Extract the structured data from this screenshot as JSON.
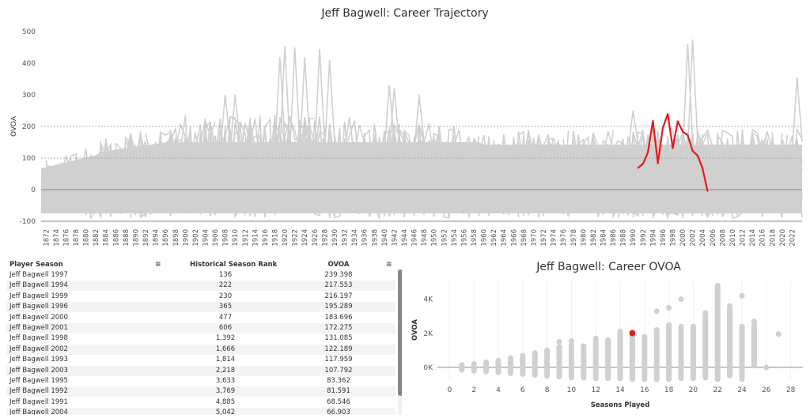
{
  "chart_data": [
    {
      "type": "line",
      "title": "Jeff Bagwell: Career Trajectory",
      "ylabel": "OVOA",
      "xlabel": "",
      "ylim": [
        -100,
        500
      ],
      "xlim": [
        1871,
        2024
      ],
      "y_ticks": [
        "500",
        "400",
        "300",
        "200",
        "100",
        "0",
        "-100"
      ],
      "x_tick_years": [
        1872,
        1874,
        1876,
        1878,
        1880,
        1882,
        1884,
        1886,
        1888,
        1890,
        1892,
        1894,
        1896,
        1898,
        1900,
        1902,
        1904,
        1906,
        1908,
        1910,
        1912,
        1914,
        1916,
        1918,
        1920,
        1922,
        1924,
        1926,
        1928,
        1930,
        1932,
        1934,
        1936,
        1938,
        1940,
        1942,
        1944,
        1946,
        1948,
        1950,
        1952,
        1954,
        1956,
        1958,
        1960,
        1962,
        1964,
        1966,
        1968,
        1970,
        1972,
        1974,
        1976,
        1978,
        1980,
        1982,
        1984,
        1986,
        1988,
        1990,
        1992,
        1994,
        1996,
        1998,
        2000,
        2002,
        2004,
        2006,
        2008,
        2010,
        2012,
        2014,
        2016,
        2018,
        2020,
        2022
      ],
      "reference_lines": [
        200,
        100,
        0,
        -100
      ],
      "background_series_color": "#d0d0d0",
      "highlight_color": "#e31a1c",
      "series": [
        {
          "name": "Jeff Bagwell",
          "x": [
            1991,
            1992,
            1993,
            1994,
            1995,
            1996,
            1997,
            1998,
            1999,
            2000,
            2001,
            2002,
            2003,
            2004,
            2005
          ],
          "y": [
            68.546,
            81.591,
            117.959,
            217.553,
            83.362,
            195.289,
            239.398,
            131.085,
            216.197,
            183.696,
            172.275,
            122.189,
            107.792,
            66.903,
            -5
          ]
        }
      ]
    },
    {
      "type": "scatter",
      "title": "Jeff Bagwell: Career OVOA",
      "xlabel": "Seasons Played",
      "ylabel": "OVOA",
      "xlim": [
        -1,
        29
      ],
      "ylim": [
        -700,
        5100
      ],
      "x_ticks": [
        "0",
        "2",
        "4",
        "6",
        "8",
        "10",
        "12",
        "14",
        "16",
        "18",
        "20",
        "22",
        "24",
        "26",
        "28"
      ],
      "y_ticks": [
        "4K",
        "2K",
        "0K"
      ],
      "point_color": "#d0d0d0",
      "highlight_color": "#e31a1c",
      "column_ranges": [
        [
          1,
          -150,
          150
        ],
        [
          2,
          -200,
          200
        ],
        [
          3,
          -250,
          300
        ],
        [
          4,
          -300,
          400
        ],
        [
          5,
          -350,
          550
        ],
        [
          6,
          -400,
          700
        ],
        [
          7,
          -450,
          850
        ],
        [
          8,
          -500,
          1000
        ],
        [
          9,
          -550,
          1200
        ],
        [
          10,
          -600,
          1300
        ],
        [
          11,
          -600,
          1250
        ],
        [
          12,
          -650,
          1700
        ],
        [
          13,
          -650,
          1600
        ],
        [
          14,
          -650,
          2100
        ],
        [
          15,
          -700,
          2100
        ],
        [
          16,
          -700,
          1800
        ],
        [
          17,
          -700,
          2200
        ],
        [
          18,
          -700,
          2500
        ],
        [
          19,
          -650,
          2400
        ],
        [
          20,
          -650,
          2400
        ],
        [
          21,
          -600,
          3000
        ],
        [
          22,
          -700,
          4800
        ],
        [
          23,
          -500,
          3600
        ],
        [
          24,
          -500,
          2400
        ],
        [
          25,
          100,
          2500
        ]
      ],
      "outliers": [
        [
          17,
          3300
        ],
        [
          18,
          3500
        ],
        [
          19,
          4000
        ],
        [
          21,
          3200
        ],
        [
          22,
          4000
        ],
        [
          24,
          4200
        ],
        [
          25,
          2700
        ],
        [
          26,
          0
        ],
        [
          27,
          1950
        ],
        [
          9,
          1500
        ],
        [
          10,
          1550
        ],
        [
          24,
          -700
        ]
      ],
      "highlight_point": {
        "name": "Jeff Bagwell",
        "x": 15,
        "y": 1999.5
      }
    }
  ],
  "table": {
    "headers": [
      "Player Season",
      "Historical Season Rank",
      "OVOA"
    ],
    "rows": [
      [
        "Jeff Bagwell 1997",
        "136",
        "239.398"
      ],
      [
        "Jeff Bagwell 1994",
        "222",
        "217.553"
      ],
      [
        "Jeff Bagwell 1999",
        "230",
        "216.197"
      ],
      [
        "Jeff Bagwell 1996",
        "365",
        "195.289"
      ],
      [
        "Jeff Bagwell 2000",
        "477",
        "183.696"
      ],
      [
        "Jeff Bagwell 2001",
        "606",
        "172.275"
      ],
      [
        "Jeff Bagwell 1998",
        "1,392",
        "131.085"
      ],
      [
        "Jeff Bagwell 2002",
        "1,666",
        "122.189"
      ],
      [
        "Jeff Bagwell 1993",
        "1,814",
        "117.959"
      ],
      [
        "Jeff Bagwell 2003",
        "2,218",
        "107.792"
      ],
      [
        "Jeff Bagwell 1995",
        "3,633",
        "83.362"
      ],
      [
        "Jeff Bagwell 1992",
        "3,769",
        "81.591"
      ],
      [
        "Jeff Bagwell 1991",
        "4,885",
        "68.546"
      ],
      [
        "Jeff Bagwell 2004",
        "5,042",
        "66.903"
      ]
    ]
  }
}
